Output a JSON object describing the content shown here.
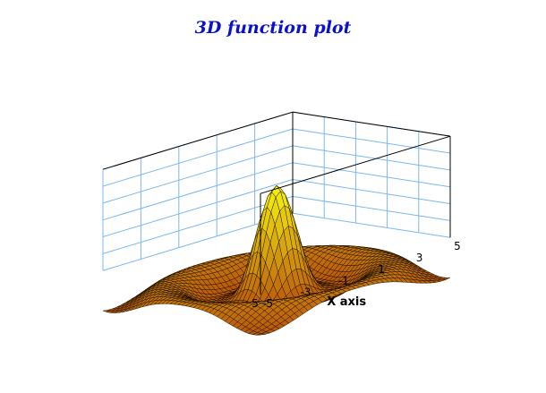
{
  "title": "3D function plot",
  "colors": {
    "title": "#0a10d0",
    "grid": "#7ab8ef",
    "box": "#000000",
    "surface_low": "#b8560a",
    "surface_high": "#f2ea0e",
    "mesh": "#1a0c00"
  },
  "chart_data": {
    "type": "surface3d",
    "title": "3D function plot",
    "xlabel": "X axis",
    "ylabel": "",
    "zlabel": "",
    "function_shape": "damped radial ripple centred at origin (sinc-like peak)",
    "x_range": [
      -5,
      5
    ],
    "y_range": [
      -5,
      5
    ],
    "x_ticks": [
      "-5",
      "-3",
      "-1",
      "1",
      "3",
      "5"
    ],
    "y_ticks": [
      "5"
    ],
    "z_ticks": [],
    "grid": "on (back walls)",
    "colormap": "copper-to-yellow by height"
  }
}
